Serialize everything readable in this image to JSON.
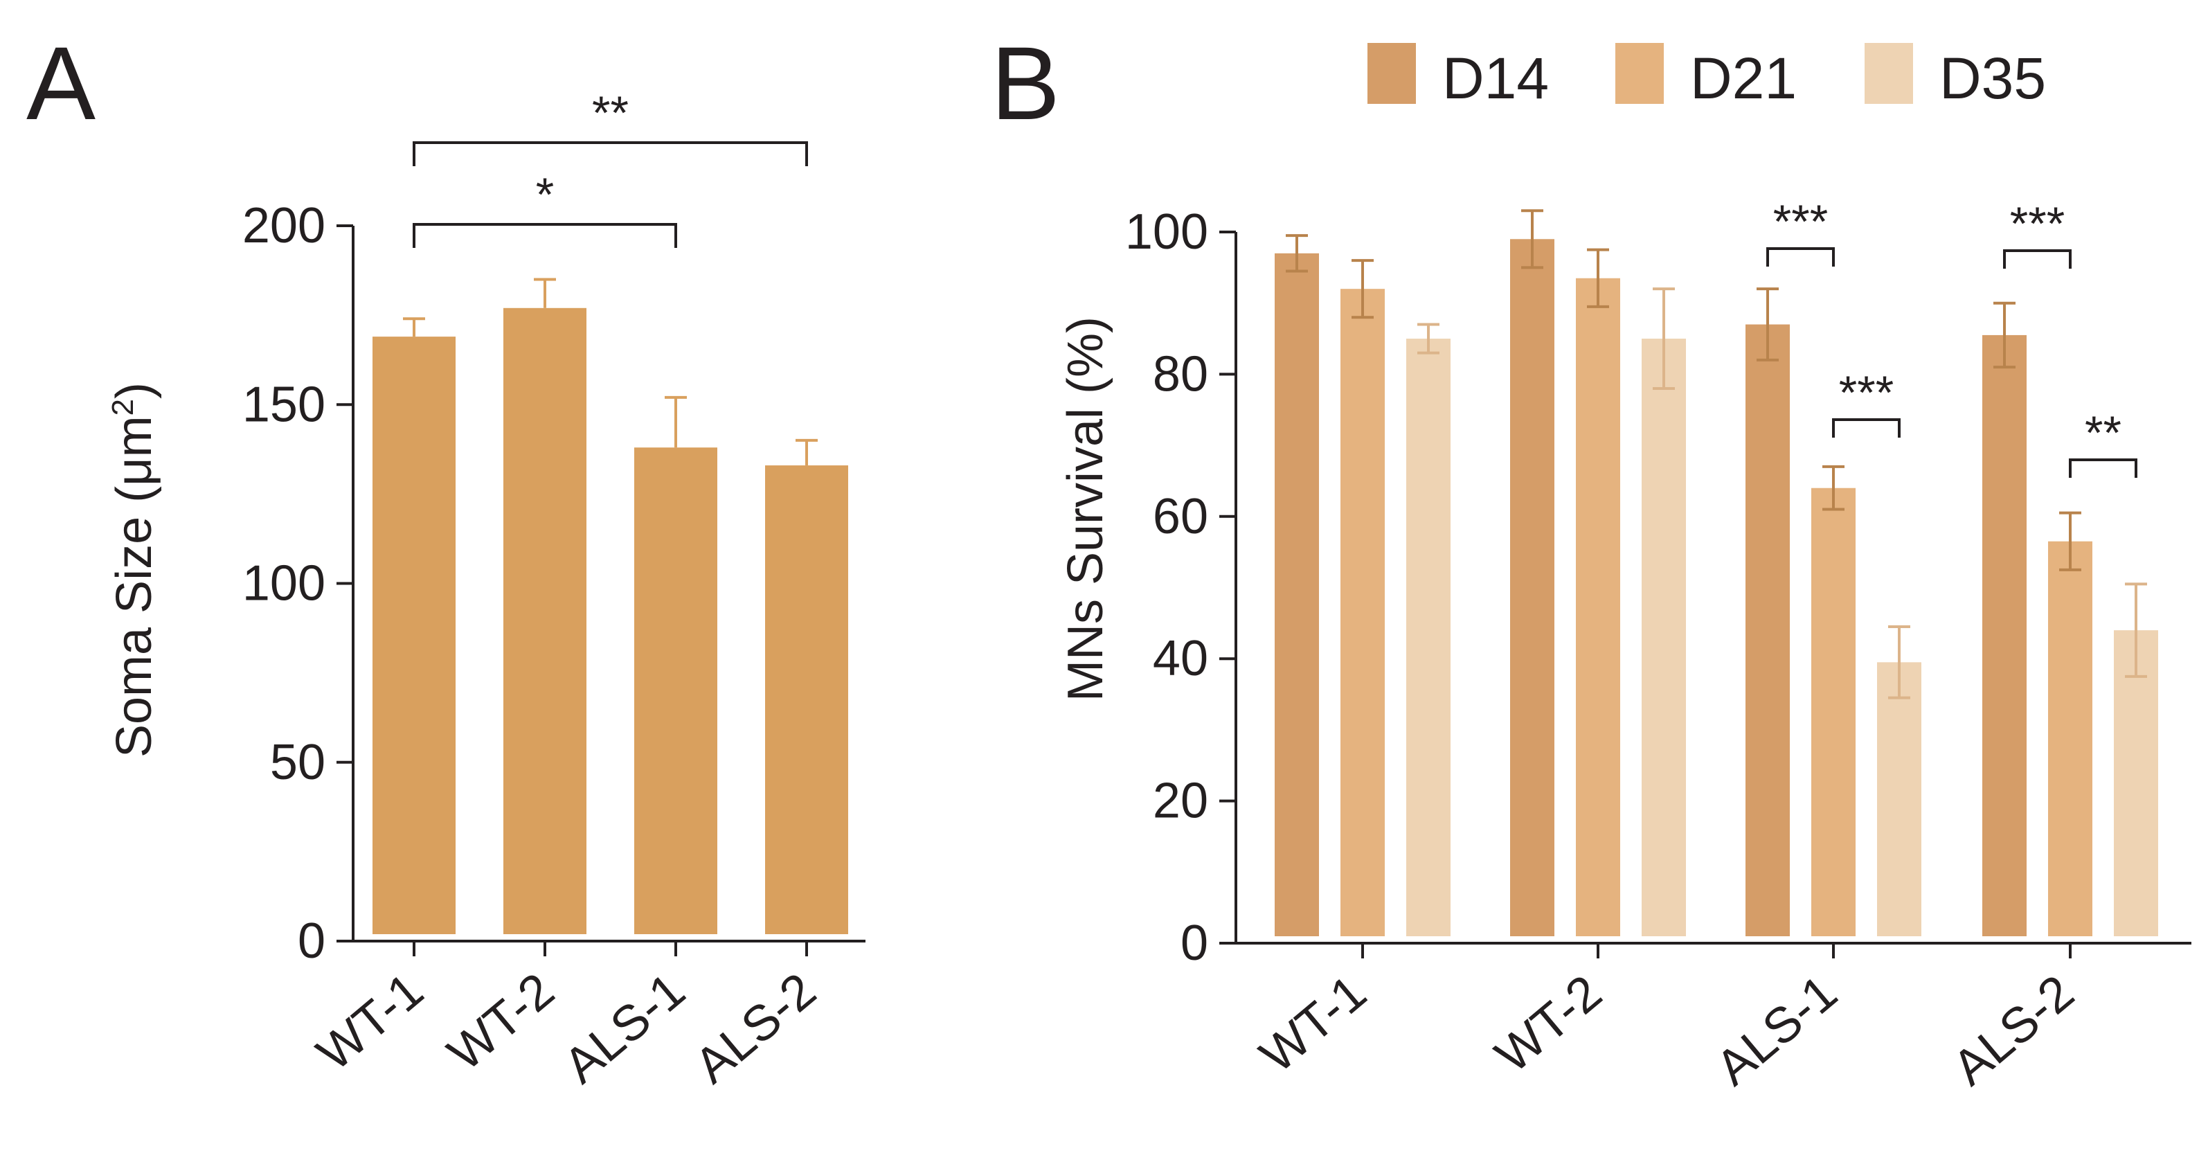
{
  "chart_data": [
    {
      "panel": "A",
      "type": "bar",
      "ylabel": "Soma Size (μm²)",
      "ylabel_parts": {
        "main": "Soma Size (μm",
        "sup": "2",
        "close": ")"
      },
      "ylim": [
        0,
        200
      ],
      "yticks": [
        0,
        50,
        100,
        150,
        200
      ],
      "categories": [
        "WT-1",
        "WT-2",
        "ALS-1",
        "ALS-2"
      ],
      "values": [
        169,
        177,
        138,
        133
      ],
      "errors": [
        5,
        8,
        14,
        7
      ],
      "color": "#d9a05e",
      "significance": [
        {
          "from": 0,
          "to": 2,
          "label": "*"
        },
        {
          "from": 0,
          "to": 3,
          "label": "**"
        }
      ]
    },
    {
      "panel": "B",
      "type": "bar",
      "ylabel": "MNs Survival (%)",
      "ylim": [
        0,
        100
      ],
      "yticks": [
        0,
        20,
        40,
        60,
        80,
        100
      ],
      "categories": [
        "WT-1",
        "WT-2",
        "ALS-1",
        "ALS-2"
      ],
      "legend_position": "top",
      "series": [
        {
          "name": "D14",
          "color": "#d59d68",
          "values": [
            97,
            99,
            87,
            85.5
          ],
          "errors": [
            2.5,
            4,
            5,
            4.5
          ]
        },
        {
          "name": "D21",
          "color": "#e5b37f",
          "values": [
            92,
            93.5,
            64,
            56.5
          ],
          "errors": [
            4,
            4,
            3,
            4
          ]
        },
        {
          "name": "D35",
          "color": "#eed3b3",
          "values": [
            85,
            85,
            39.5,
            44
          ],
          "errors": [
            2,
            7,
            5,
            6.5
          ]
        }
      ],
      "significance": [
        {
          "group": 2,
          "from_series": 0,
          "to_series": 1,
          "label": "***"
        },
        {
          "group": 2,
          "from_series": 1,
          "to_series": 2,
          "label": "***"
        },
        {
          "group": 3,
          "from_series": 0,
          "to_series": 1,
          "label": "***"
        },
        {
          "group": 3,
          "from_series": 1,
          "to_series": 2,
          "label": "**"
        }
      ]
    }
  ]
}
